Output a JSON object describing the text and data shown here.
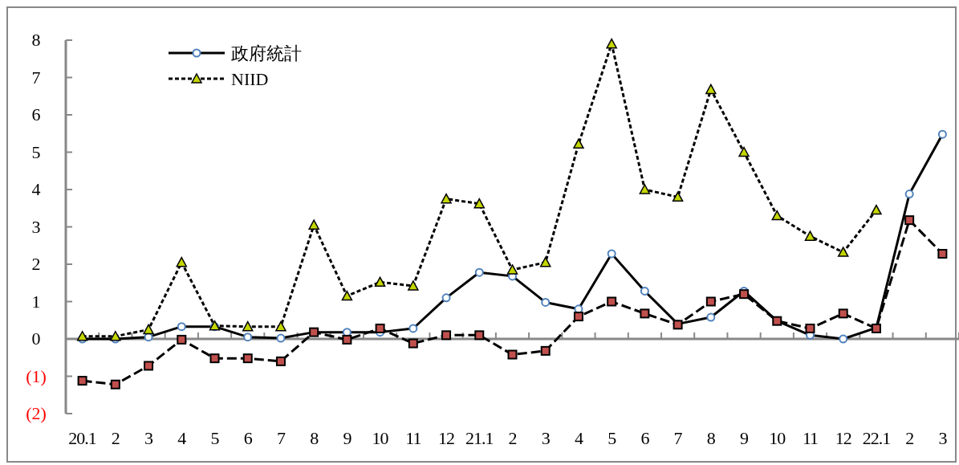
{
  "chart_data": {
    "type": "line",
    "categories": [
      "20.1",
      "2",
      "3",
      "4",
      "5",
      "6",
      "7",
      "8",
      "9",
      "10",
      "11",
      "12",
      "21.1",
      "2",
      "3",
      "4",
      "5",
      "6",
      "7",
      "8",
      "9",
      "10",
      "11",
      "12",
      "22.1",
      "2",
      "3"
    ],
    "series": [
      {
        "name": "政府統計",
        "color": "#000000",
        "marker": "circle",
        "line_style": "solid",
        "values": [
          0,
          0,
          0.05,
          0.33,
          0.33,
          0.05,
          0.02,
          0.18,
          0.18,
          0.18,
          0.28,
          1.1,
          1.78,
          1.68,
          0.98,
          0.8,
          2.28,
          1.28,
          0.4,
          0.58,
          1.28,
          0.48,
          0.1,
          0,
          0.3,
          3.88,
          5.48
        ]
      },
      {
        "color": "#000000",
        "marker": "square",
        "line_style": "dashed",
        "values": [
          -1.12,
          -1.22,
          -0.72,
          -0.02,
          -0.52,
          -0.52,
          -0.6,
          0.18,
          -0.02,
          0.28,
          -0.12,
          0.1,
          0.1,
          -0.42,
          -0.32,
          0.6,
          1.0,
          0.68,
          0.38,
          1.0,
          1.2,
          0.48,
          0.28,
          0.68,
          0.28,
          3.18,
          2.28
        ]
      },
      {
        "name": "NIID",
        "color": "#000000",
        "marker": "triangle",
        "line_style": "dotted",
        "values": [
          0.07,
          0.07,
          0.25,
          2.05,
          0.35,
          0.33,
          0.33,
          3.05,
          1.15,
          1.52,
          1.42,
          3.75,
          3.62,
          1.85,
          2.05,
          5.22,
          7.9,
          4.0,
          3.8,
          6.68,
          5.0,
          3.3,
          2.75,
          2.32,
          3.45,
          null,
          null
        ]
      }
    ],
    "ylim": [
      -2,
      8
    ],
    "yticks": [
      {
        "value": -2,
        "label": "(2)"
      },
      {
        "value": -1,
        "label": "(1)"
      },
      0,
      1,
      2,
      3,
      4,
      5,
      6,
      7,
      8
    ],
    "legend": "top left"
  }
}
